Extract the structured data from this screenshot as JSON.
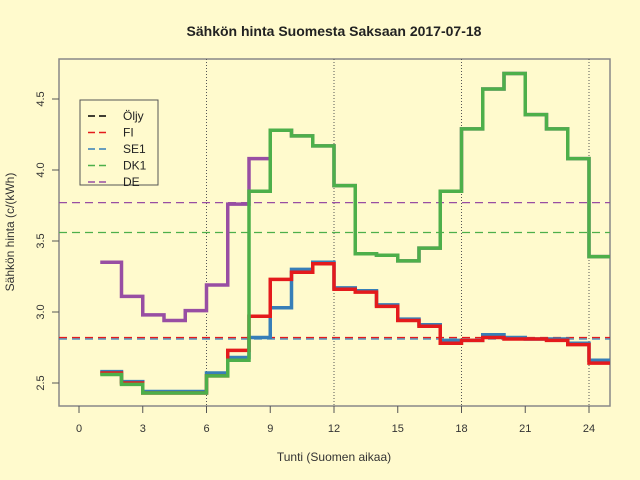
{
  "chart_data": {
    "type": "line",
    "step": true,
    "title": "Sähkön hinta Suomesta Saksaan 2017-07-18",
    "xlabel": "Tunti (Suomen aikaa)",
    "ylabel": "Sähkön hinta (c/(kWh)",
    "xlim": [
      -0.5,
      25
    ],
    "ylim": [
      2.32,
      4.77
    ],
    "xticks": [
      0,
      3,
      6,
      9,
      12,
      15,
      18,
      21,
      24
    ],
    "yticks": [
      2.5,
      3.0,
      3.5,
      4.0,
      4.5
    ],
    "ytick_labels": [
      "2.5",
      "3.0",
      "3.5",
      "4.0",
      "4.5"
    ],
    "vlines": [
      6,
      12,
      18,
      24
    ],
    "grid": false,
    "legend_position": "top-left",
    "x": [
      1,
      2,
      3,
      4,
      5,
      6,
      7,
      8,
      9,
      10,
      11,
      12,
      13,
      14,
      15,
      16,
      17,
      18,
      19,
      20,
      21,
      22,
      23,
      24
    ],
    "series": [
      {
        "name": "Öljy",
        "color": "#000000",
        "values": [],
        "mean": null
      },
      {
        "name": "FI",
        "color": "#e41a1c",
        "values": [
          2.57,
          2.5,
          2.43,
          2.43,
          2.43,
          2.55,
          2.73,
          2.97,
          3.23,
          3.28,
          3.34,
          3.16,
          3.14,
          3.04,
          2.94,
          2.9,
          2.78,
          2.8,
          2.82,
          2.81,
          2.81,
          2.8,
          2.77,
          2.64
        ],
        "mean": 2.82
      },
      {
        "name": "SE1",
        "color": "#377eb8",
        "values": [
          2.58,
          2.51,
          2.44,
          2.44,
          2.44,
          2.57,
          2.68,
          2.82,
          3.03,
          3.3,
          3.35,
          3.17,
          3.15,
          3.05,
          2.95,
          2.91,
          2.8,
          2.8,
          2.84,
          2.82,
          2.81,
          2.81,
          2.78,
          2.66
        ],
        "mean": 2.81
      },
      {
        "name": "DK1",
        "color": "#4daf4a",
        "values": [
          2.56,
          2.49,
          2.43,
          2.43,
          2.43,
          2.55,
          2.66,
          3.85,
          4.28,
          4.24,
          4.17,
          3.89,
          3.41,
          3.4,
          3.36,
          3.45,
          3.85,
          4.29,
          4.57,
          4.68,
          4.39,
          4.29,
          4.08,
          3.39
        ],
        "mean": 3.56
      },
      {
        "name": "DE",
        "color": "#984ea3",
        "values": [
          3.35,
          3.11,
          2.98,
          2.94,
          3.01,
          3.19,
          3.76,
          4.08,
          4.28,
          4.24,
          4.17,
          3.89,
          3.41,
          3.4,
          3.36,
          3.45,
          3.85,
          4.29,
          4.57,
          4.68,
          4.39,
          4.29,
          4.08,
          3.39
        ],
        "mean": 3.77
      }
    ]
  },
  "colors": {
    "background": "#fffacd",
    "axis": "#555555"
  }
}
